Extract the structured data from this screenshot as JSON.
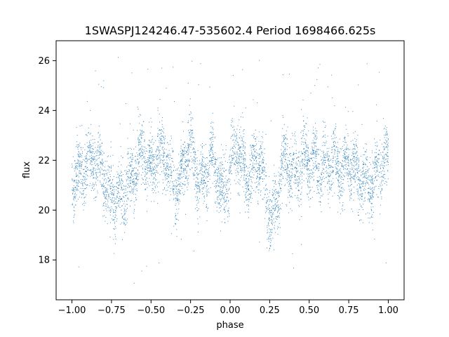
{
  "chart_data": {
    "type": "scatter",
    "title": "1SWASPJ124246.47-535602.4 Period 1698466.625s",
    "xlabel": "phase",
    "ylabel": "flux",
    "xlim": [
      -1.1,
      1.1
    ],
    "ylim": [
      16.4,
      26.8
    ],
    "xticks": [
      -1.0,
      -0.75,
      -0.5,
      -0.25,
      0.0,
      0.25,
      0.5,
      0.75,
      1.0
    ],
    "xtick_labels": [
      "−1.00",
      "−0.75",
      "−0.50",
      "−0.25",
      "0.00",
      "0.25",
      "0.50",
      "0.75",
      "1.00"
    ],
    "yticks": [
      18,
      20,
      22,
      24,
      26
    ],
    "ytick_labels": [
      "18",
      "20",
      "22",
      "24",
      "26"
    ],
    "grid": false,
    "marker_color": "#1f77b4",
    "series": [
      {
        "x_range": [
          -1.0,
          1.0
        ],
        "baseline_flux": 21.6,
        "flux_spread": [
          19.8,
          23.6
        ],
        "outlier_range": [
          16.9,
          26.3
        ],
        "dips": [
          {
            "phase": -0.72,
            "flux": 19.6
          },
          {
            "phase": 0.28,
            "flux": 19.6
          }
        ],
        "peaks": [
          {
            "phase": -0.45,
            "flux": 24.3
          },
          {
            "phase": 0.55,
            "flux": 24.3
          }
        ]
      }
    ]
  }
}
